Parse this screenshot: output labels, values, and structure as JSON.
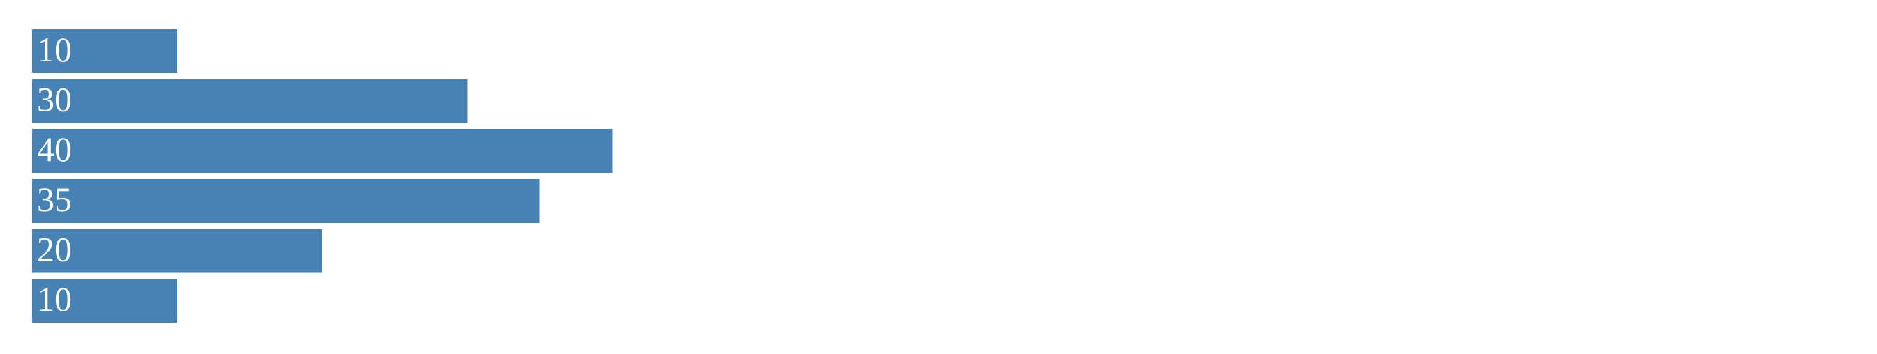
{
  "chart_data": {
    "type": "bar",
    "orientation": "horizontal",
    "values": [
      10,
      30,
      40,
      35,
      20,
      10
    ],
    "data_labels": [
      "10",
      "30",
      "40",
      "35",
      "20",
      "10"
    ],
    "xlim": [
      0,
      125
    ],
    "grid": false,
    "legend": "none",
    "title": "",
    "xlabel": "",
    "ylabel": ""
  },
  "colors": {
    "bar": "#4682b4",
    "label": "#ffffff",
    "background": "#ffffff"
  }
}
